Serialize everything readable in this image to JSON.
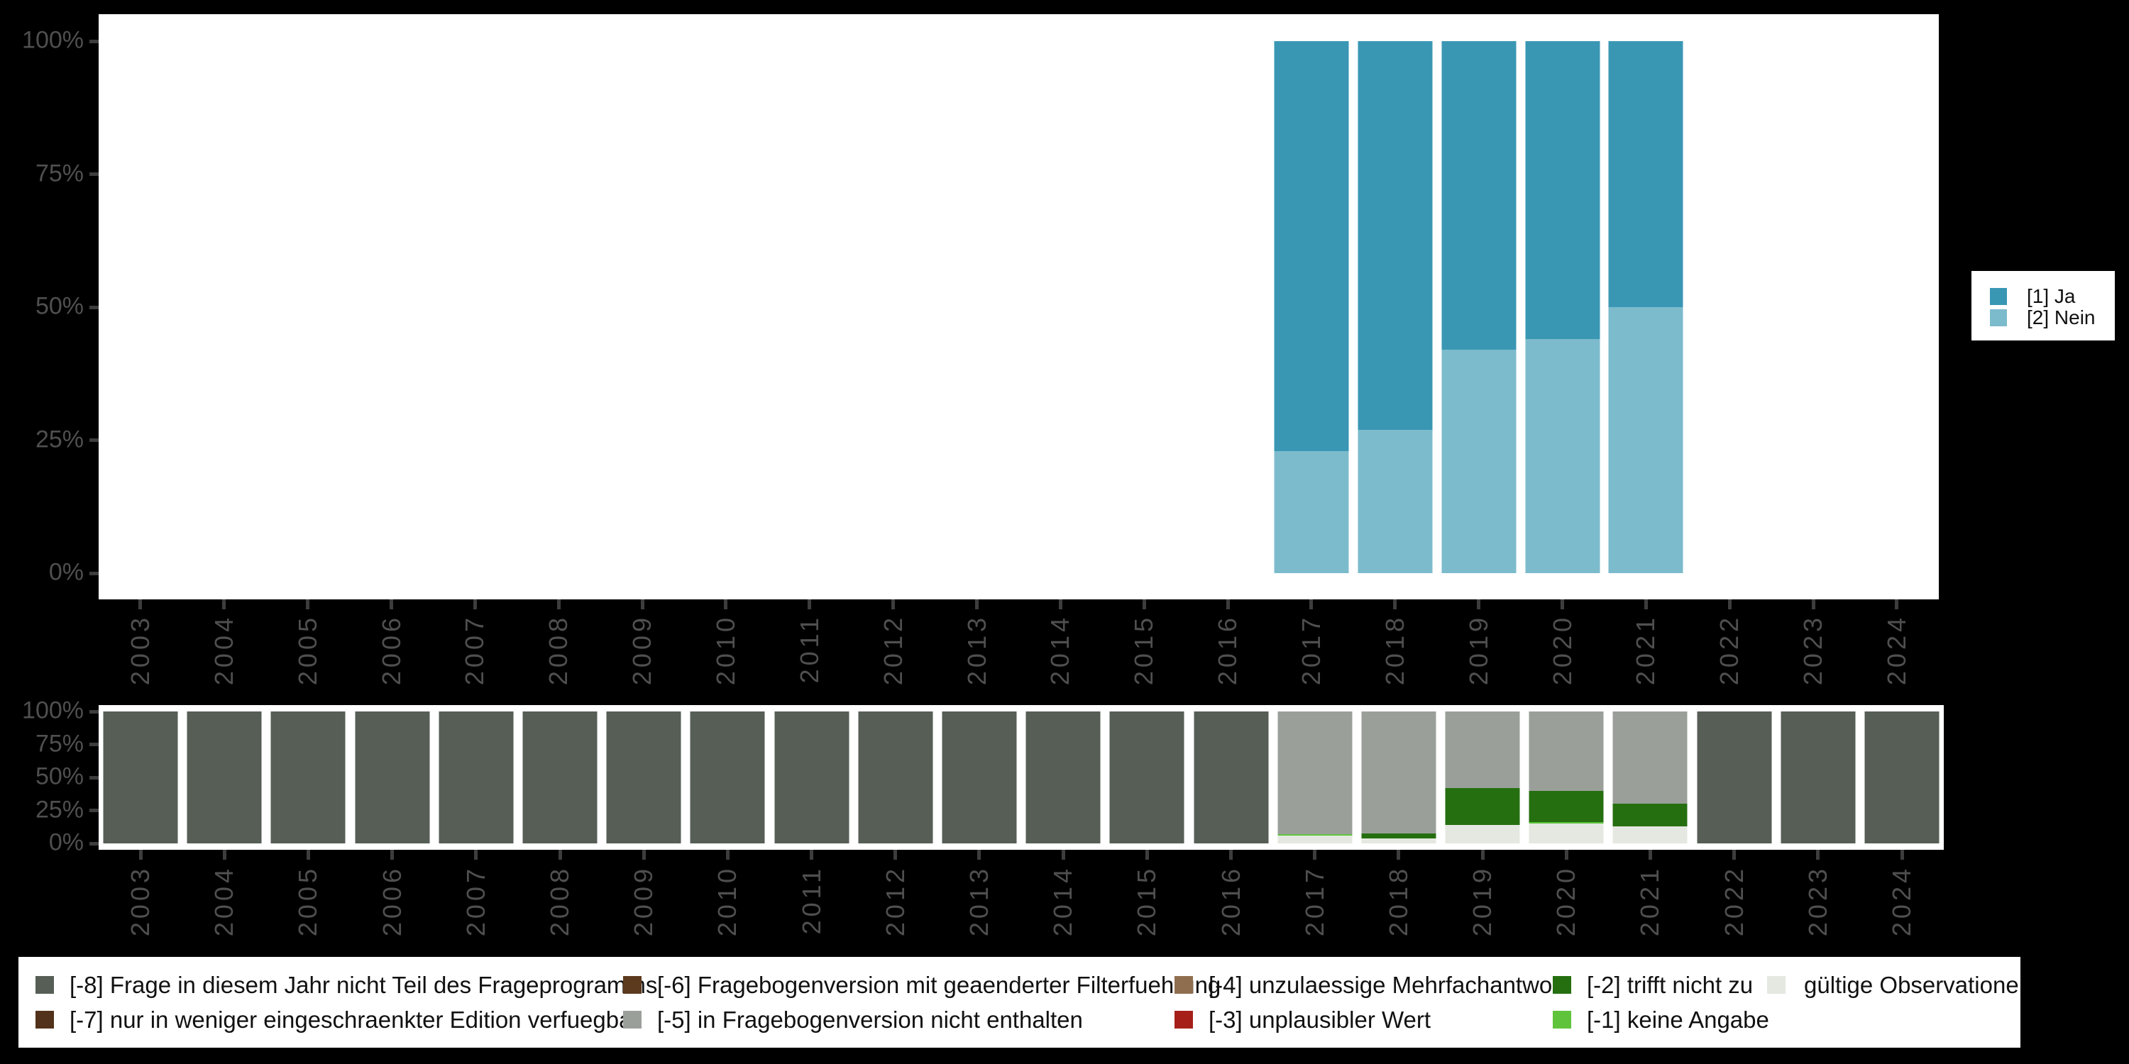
{
  "background": "#000000",
  "panel_bg": "#ffffff",
  "axis": {
    "tick_label_color": "#4f4f4f",
    "tick_mark_color": "#3d3d3d",
    "y_ticks": [
      "100%",
      "75%",
      "50%",
      "25%",
      "0%"
    ],
    "years": [
      "2003",
      "2004",
      "2005",
      "2006",
      "2007",
      "2008",
      "2009",
      "2010",
      "2011",
      "2012",
      "2013",
      "2014",
      "2015",
      "2016",
      "2017",
      "2018",
      "2019",
      "2020",
      "2021",
      "2022",
      "2023",
      "2024"
    ]
  },
  "legend_top": {
    "items": [
      {
        "label": "[1] Ja",
        "color": "#3a97b4"
      },
      {
        "label": "[2] Nein",
        "color": "#7cbbcc"
      }
    ]
  },
  "legend_bottom": {
    "items": [
      {
        "label": "[-8] Frage in diesem Jahr nicht Teil des Frageprogramms",
        "color": "#565e56"
      },
      {
        "label": "[-7] nur in weniger eingeschraenkter Edition verfuegbar",
        "color": "#52321a"
      },
      {
        "label": "[-6] Fragebogenversion mit geaenderter Filterfuehrung",
        "color": "#5c3a1e"
      },
      {
        "label": "[-5] in Fragebogenversion nicht enthalten",
        "color": "#9aa099"
      },
      {
        "label": "[-4] unzulaessige Mehrfachantwort",
        "color": "#8f6e4f"
      },
      {
        "label": "[-3] unplausibler Wert",
        "color": "#a62019"
      },
      {
        "label": "[-2] trifft nicht zu",
        "color": "#256f10"
      },
      {
        "label": "[-1] keine Angabe",
        "color": "#5fc43c"
      },
      {
        "label": "gültige Observationen",
        "color": "#e4e8e1"
      }
    ]
  },
  "chart_data": [
    {
      "type": "bar",
      "stacked": true,
      "title": "",
      "xlabel": "",
      "ylabel": "",
      "ylim": [
        0,
        100
      ],
      "yticks_percent": [
        0,
        25,
        50,
        75,
        100
      ],
      "grid": false,
      "legend_position": "right",
      "categories": [
        "2003",
        "2004",
        "2005",
        "2006",
        "2007",
        "2008",
        "2009",
        "2010",
        "2011",
        "2012",
        "2013",
        "2014",
        "2015",
        "2016",
        "2017",
        "2018",
        "2019",
        "2020",
        "2021",
        "2022",
        "2023",
        "2024"
      ],
      "series": [
        {
          "name": "[1] Ja",
          "color": "#3a97b4",
          "values": [
            null,
            null,
            null,
            null,
            null,
            null,
            null,
            null,
            null,
            null,
            null,
            null,
            null,
            null,
            77,
            73,
            58,
            56,
            50,
            null,
            null,
            null
          ]
        },
        {
          "name": "[2] Nein",
          "color": "#7cbbcc",
          "values": [
            null,
            null,
            null,
            null,
            null,
            null,
            null,
            null,
            null,
            null,
            null,
            null,
            null,
            null,
            23,
            27,
            42,
            44,
            50,
            null,
            null,
            null
          ]
        }
      ]
    },
    {
      "type": "bar",
      "stacked": true,
      "title": "",
      "xlabel": "",
      "ylabel": "",
      "ylim": [
        0,
        100
      ],
      "yticks_percent": [
        0,
        25,
        50,
        75,
        100
      ],
      "grid": false,
      "legend_position": "bottom",
      "categories": [
        "2003",
        "2004",
        "2005",
        "2006",
        "2007",
        "2008",
        "2009",
        "2010",
        "2011",
        "2012",
        "2013",
        "2014",
        "2015",
        "2016",
        "2017",
        "2018",
        "2019",
        "2020",
        "2021",
        "2022",
        "2023",
        "2024"
      ],
      "series": [
        {
          "name": "[-8] Frage in diesem Jahr nicht Teil des Frageprogramms",
          "color": "#565e56",
          "values": [
            100,
            100,
            100,
            100,
            100,
            100,
            100,
            100,
            100,
            100,
            100,
            100,
            100,
            100,
            0,
            0,
            0,
            0,
            0,
            100,
            100,
            100
          ]
        },
        {
          "name": "[-7] nur in weniger eingeschraenkter Edition verfuegbar",
          "color": "#52321a",
          "values": [
            0,
            0,
            0,
            0,
            0,
            0,
            0,
            0,
            0,
            0,
            0,
            0,
            0,
            0,
            0,
            0,
            0,
            0,
            0,
            0,
            0,
            0
          ]
        },
        {
          "name": "[-6] Fragebogenversion mit geaenderter Filterfuehrung",
          "color": "#5c3a1e",
          "values": [
            0,
            0,
            0,
            0,
            0,
            0,
            0,
            0,
            0,
            0,
            0,
            0,
            0,
            0,
            0,
            0,
            0,
            0,
            0,
            0,
            0,
            0
          ]
        },
        {
          "name": "[-5] in Fragebogenversion nicht enthalten",
          "color": "#9aa099",
          "values": [
            0,
            0,
            0,
            0,
            0,
            0,
            0,
            0,
            0,
            0,
            0,
            0,
            0,
            0,
            93,
            92.5,
            58,
            60,
            70,
            0,
            0,
            0
          ]
        },
        {
          "name": "[-4] unzulaessige Mehrfachantwort",
          "color": "#8f6e4f",
          "values": [
            0,
            0,
            0,
            0,
            0,
            0,
            0,
            0,
            0,
            0,
            0,
            0,
            0,
            0,
            0,
            0,
            0,
            0,
            0,
            0,
            0,
            0
          ]
        },
        {
          "name": "[-3] unplausibler Wert",
          "color": "#a62019",
          "values": [
            0,
            0,
            0,
            0,
            0,
            0,
            0,
            0,
            0,
            0,
            0,
            0,
            0,
            0,
            0,
            0,
            0,
            0,
            0,
            0,
            0,
            0
          ]
        },
        {
          "name": "[-2] trifft nicht zu",
          "color": "#256f10",
          "values": [
            0,
            0,
            0,
            0,
            0,
            0,
            0,
            0,
            0,
            0,
            0,
            0,
            0,
            0,
            0,
            3.5,
            28,
            24,
            17,
            0,
            0,
            0
          ]
        },
        {
          "name": "[-1] keine Angabe",
          "color": "#5fc43c",
          "values": [
            0,
            0,
            0,
            0,
            0,
            0,
            0,
            0,
            0,
            0,
            0,
            0,
            0,
            0,
            1,
            0,
            0,
            1,
            0,
            0,
            0,
            0
          ]
        },
        {
          "name": "gültige Observationen",
          "color": "#e4e8e1",
          "values": [
            0,
            0,
            0,
            0,
            0,
            0,
            0,
            0,
            0,
            0,
            0,
            0,
            0,
            0,
            6,
            4,
            14,
            15,
            13,
            0,
            0,
            0
          ]
        }
      ]
    }
  ]
}
